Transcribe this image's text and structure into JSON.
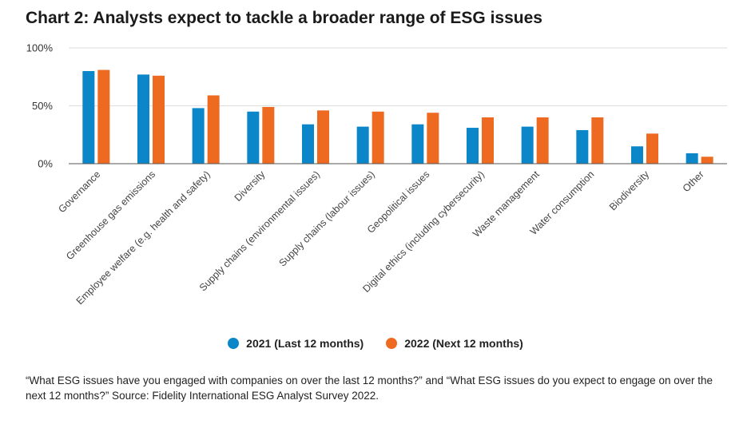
{
  "title": "Chart 2: Analysts expect to tackle a broader range of ESG issues",
  "colors": {
    "series_2021": "#0b87c9",
    "series_2022": "#ee6a21",
    "grid": "#dddddd",
    "axis": "#555555"
  },
  "legend": {
    "series_2021": "2021 (Last 12 months)",
    "series_2022": "2022 (Next 12 months)"
  },
  "footnote": "“What ESG issues have you engaged with companies on over the last 12 months?” and “What ESG issues do you expect to engage on over the next 12 months?” Source: Fidelity International ESG Analyst Survey 2022.",
  "chart_data": {
    "type": "bar",
    "title": "Chart 2: Analysts expect to tackle a broader range of ESG issues",
    "xlabel": "",
    "ylabel": "",
    "ylim": [
      0,
      100
    ],
    "yticks": [
      0,
      50,
      100
    ],
    "ytick_labels": [
      "0%",
      "50%",
      "100%"
    ],
    "grid": true,
    "legend_position": "bottom",
    "categories": [
      "Governance",
      "Greenhouse gas emissions",
      "Employee welfare (e.g. health and safety)",
      "Diversity",
      "Supply chains (environmental issues)",
      "Supply chains (labour issues)",
      "Geopolitical issues",
      "Digital ethics (including cybersecurity)",
      "Waste management",
      "Water consumption",
      "Biodiversity",
      "Other"
    ],
    "series": [
      {
        "name": "2021 (Last 12 months)",
        "values": [
          80,
          77,
          48,
          45,
          34,
          32,
          34,
          31,
          32,
          29,
          15,
          9
        ]
      },
      {
        "name": "2022 (Next 12 months)",
        "values": [
          81,
          76,
          59,
          49,
          46,
          45,
          44,
          40,
          40,
          40,
          26,
          6
        ]
      }
    ]
  }
}
